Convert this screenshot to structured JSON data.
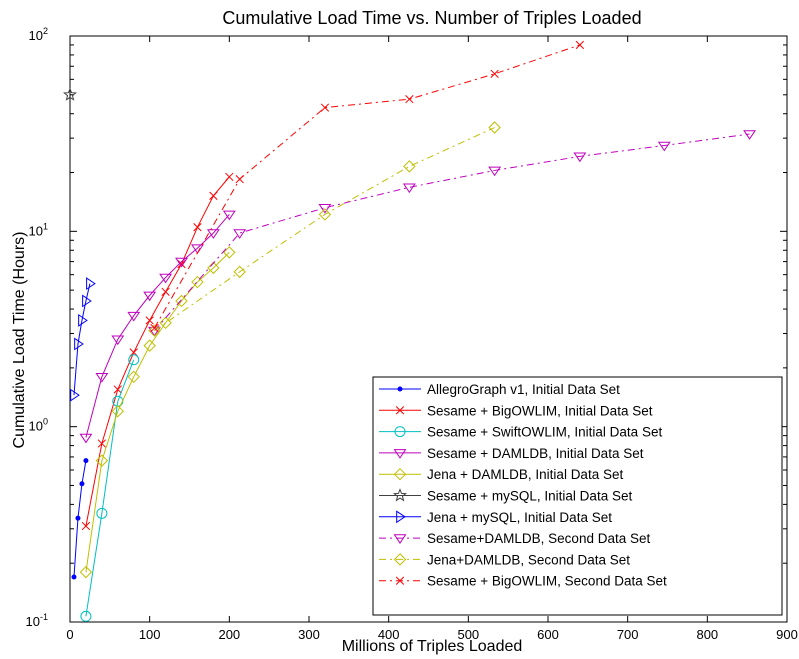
{
  "chart_data": {
    "type": "line",
    "title": "Cumulative Load Time vs. Number of Triples Loaded",
    "xlabel": "Millions of Triples Loaded",
    "ylabel": "Cumulative Load Time (Hours)",
    "xlim": [
      0,
      900
    ],
    "ylim": [
      0.1,
      100
    ],
    "yscale": "log",
    "x_ticks": [
      0,
      100,
      200,
      300,
      400,
      500,
      600,
      700,
      800,
      900
    ],
    "y_ticks": [
      {
        "value": 0.1,
        "base": "10",
        "exp": "-1"
      },
      {
        "value": 1,
        "base": "10",
        "exp": "0"
      },
      {
        "value": 10,
        "base": "10",
        "exp": "1"
      },
      {
        "value": 100,
        "base": "10",
        "exp": "2"
      }
    ],
    "grid": false,
    "legend_position": "bottom-right",
    "series": [
      {
        "name": "AllegroGraph v1, Initial Data Set",
        "color": "#0000ff",
        "dash": "solid",
        "marker": "dot",
        "x": [
          5,
          10,
          15,
          20
        ],
        "y": [
          0.17,
          0.34,
          0.51,
          0.67
        ]
      },
      {
        "name": "Sesame + BigOWLIM, Initial Data Set",
        "color": "#ff0000",
        "dash": "solid",
        "marker": "x",
        "x": [
          20,
          40,
          60,
          80,
          100,
          120,
          140,
          160,
          180,
          200
        ],
        "y": [
          0.31,
          0.82,
          1.55,
          2.4,
          3.5,
          4.9,
          6.8,
          10.5,
          15.2,
          19
        ]
      },
      {
        "name": "Sesame + SwiftOWLIM, Initial Data Set",
        "color": "#00bfbf",
        "dash": "solid",
        "marker": "circle",
        "x": [
          20,
          40,
          60,
          80
        ],
        "y": [
          0.107,
          0.36,
          1.35,
          2.2
        ]
      },
      {
        "name": "Sesame + DAMLDB, Initial Data Set",
        "color": "#bf00bf",
        "dash": "solid",
        "marker": "triangle-down",
        "x": [
          20,
          40,
          60,
          80,
          100,
          120,
          140,
          160,
          180,
          200
        ],
        "y": [
          0.88,
          1.8,
          2.8,
          3.7,
          4.7,
          5.8,
          7.0,
          8.2,
          9.8,
          12.2
        ]
      },
      {
        "name": "Jena + DAMLDB, Initial Data Set",
        "color": "#bfbf00",
        "dash": "solid",
        "marker": "diamond",
        "x": [
          20,
          40,
          60,
          80,
          100,
          120,
          140,
          160,
          180,
          200
        ],
        "y": [
          0.18,
          0.67,
          1.2,
          1.8,
          2.6,
          3.4,
          4.4,
          5.5,
          6.5,
          7.8
        ]
      },
      {
        "name": "Sesame + mySQL, Initial Data Set",
        "color": "#404040",
        "dash": "solid",
        "marker": "star",
        "x": [
          0
        ],
        "y": [
          50
        ]
      },
      {
        "name": "Jena + mySQL, Initial Data Set",
        "color": "#0000ff",
        "dash": "solid",
        "marker": "triangle-right",
        "x": [
          5,
          10,
          15,
          20,
          25
        ],
        "y": [
          1.45,
          2.65,
          3.5,
          4.4,
          5.4
        ]
      },
      {
        "name": "Sesame+DAMLDB, Second Data Set",
        "color": "#bf00bf",
        "dash": "dashdot",
        "marker": "triangle-down",
        "x": [
          106,
          213,
          320,
          426,
          533,
          640,
          746,
          853
        ],
        "y": [
          3.1,
          9.8,
          13.2,
          16.8,
          20.5,
          24.2,
          27.5,
          31.5
        ]
      },
      {
        "name": "Jena+DAMLDB, Second Data Set",
        "color": "#bfbf00",
        "dash": "dashdot",
        "marker": "diamond",
        "x": [
          106,
          213,
          320,
          426,
          533
        ],
        "y": [
          3.1,
          6.2,
          12.2,
          21.5,
          34
        ]
      },
      {
        "name": "Sesame + BigOWLIM, Second Data Set",
        "color": "#ff0000",
        "dash": "dashdot",
        "marker": "x",
        "x": [
          106,
          213,
          320,
          426,
          533,
          640
        ],
        "y": [
          3.2,
          18.5,
          43,
          47.5,
          64,
          90
        ]
      }
    ]
  }
}
